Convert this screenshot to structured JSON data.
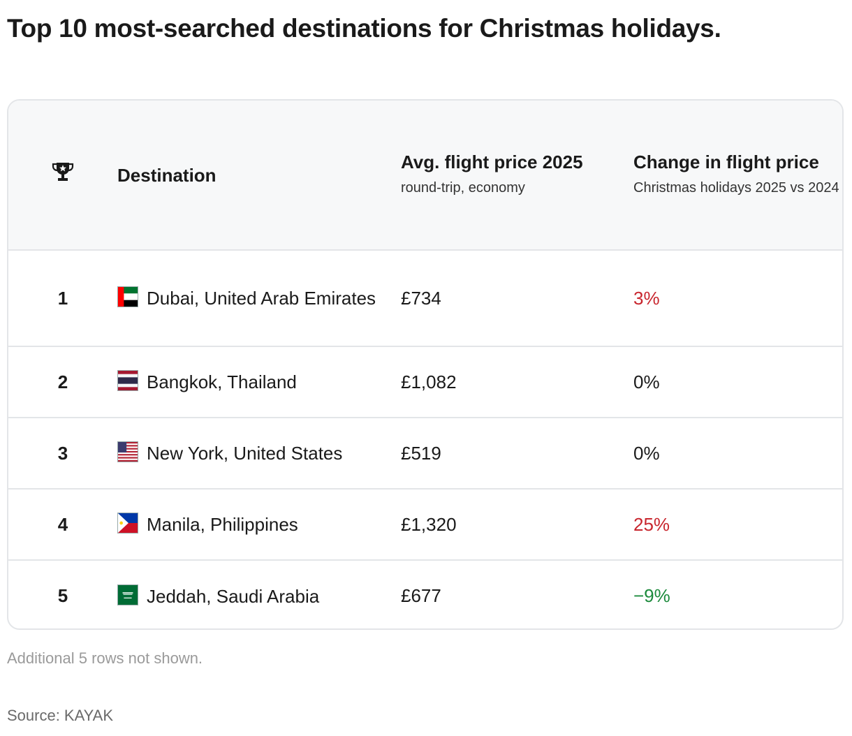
{
  "title": "Top 10 most-searched destinations for Christmas holidays.",
  "table": {
    "headers": {
      "rank_icon": "trophy-icon",
      "destination": "Destination",
      "price": "Avg. flight price 2025",
      "price_sub": "round-trip, economy",
      "change": "Change in flight price",
      "change_sub": "Christmas holidays 2025 vs 2024"
    },
    "rows": [
      {
        "rank": "1",
        "flag": "uae-flag-icon",
        "destination": "Dubai, United Arab Emirates",
        "price": "£734",
        "change": "3%",
        "trend": "increase"
      },
      {
        "rank": "2",
        "flag": "thailand-flag-icon",
        "destination": "Bangkok, Thailand",
        "price": "£1,082",
        "change": "0%",
        "trend": "neutral"
      },
      {
        "rank": "3",
        "flag": "usa-flag-icon",
        "destination": "New York, United States",
        "price": "£519",
        "change": "0%",
        "trend": "neutral"
      },
      {
        "rank": "4",
        "flag": "philippines-flag-icon",
        "destination": "Manila, Philippines",
        "price": "£1,320",
        "change": "25%",
        "trend": "increase"
      },
      {
        "rank": "5",
        "flag": "saudi-arabia-flag-icon",
        "destination": "Jeddah, Saudi Arabia",
        "price": "£677",
        "change": "−9%",
        "trend": "decrease"
      }
    ]
  },
  "note": "Additional 5 rows not shown.",
  "source": "Source: KAYAK",
  "colors": {
    "increase": "#c8262e",
    "decrease": "#1c8a3c",
    "neutral": "#1a1a1a",
    "header_bg": "#f7f8f9",
    "border": "#e3e5e8"
  }
}
